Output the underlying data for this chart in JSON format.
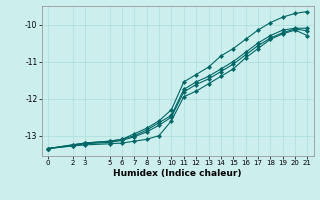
{
  "xlabel": "Humidex (Indice chaleur)",
  "bg_color": "#cceeed",
  "line_color": "#006666",
  "grid_color": "#aadddd",
  "xlim": [
    -0.5,
    21.5
  ],
  "ylim": [
    -13.55,
    -9.5
  ],
  "xticks": [
    0,
    2,
    3,
    5,
    6,
    7,
    8,
    9,
    10,
    11,
    12,
    13,
    14,
    15,
    16,
    17,
    18,
    19,
    20,
    21
  ],
  "yticks": [
    -13,
    -12,
    -11,
    -10
  ],
  "series": [
    {
      "x": [
        0,
        2,
        3,
        5,
        6,
        7,
        8,
        9,
        10,
        11,
        12,
        13,
        14,
        15,
        16,
        17,
        18,
        19,
        20,
        21
      ],
      "y": [
        -13.35,
        -13.25,
        -13.2,
        -13.15,
        -13.1,
        -12.95,
        -12.8,
        -12.6,
        -12.3,
        -11.55,
        -11.35,
        -11.15,
        -10.85,
        -10.65,
        -10.4,
        -10.15,
        -9.95,
        -9.8,
        -9.7,
        -9.65
      ]
    },
    {
      "x": [
        0,
        2,
        3,
        5,
        6,
        7,
        8,
        9,
        10,
        11,
        12,
        13,
        14,
        15,
        16,
        17,
        18,
        19,
        20,
        21
      ],
      "y": [
        -13.35,
        -13.25,
        -13.2,
        -13.15,
        -13.1,
        -13.0,
        -12.85,
        -12.65,
        -12.45,
        -11.75,
        -11.55,
        -11.4,
        -11.2,
        -11.0,
        -10.75,
        -10.5,
        -10.3,
        -10.15,
        -10.1,
        -10.1
      ]
    },
    {
      "x": [
        0,
        2,
        3,
        5,
        6,
        7,
        8,
        9,
        10,
        11,
        12,
        13,
        14,
        15,
        16,
        17,
        18,
        19,
        20,
        21
      ],
      "y": [
        -13.35,
        -13.27,
        -13.22,
        -13.18,
        -13.13,
        -13.03,
        -12.9,
        -12.72,
        -12.5,
        -11.82,
        -11.62,
        -11.47,
        -11.27,
        -11.07,
        -10.82,
        -10.57,
        -10.37,
        -10.22,
        -10.12,
        -10.17
      ]
    },
    {
      "x": [
        0,
        2,
        3,
        5,
        6,
        7,
        8,
        9,
        10,
        11,
        12,
        13,
        14,
        15,
        16,
        17,
        18,
        19,
        20,
        21
      ],
      "y": [
        -13.35,
        -13.28,
        -13.25,
        -13.22,
        -13.2,
        -13.15,
        -13.1,
        -13.0,
        -12.6,
        -11.95,
        -11.8,
        -11.6,
        -11.4,
        -11.2,
        -10.9,
        -10.65,
        -10.4,
        -10.25,
        -10.15,
        -10.3
      ]
    }
  ]
}
